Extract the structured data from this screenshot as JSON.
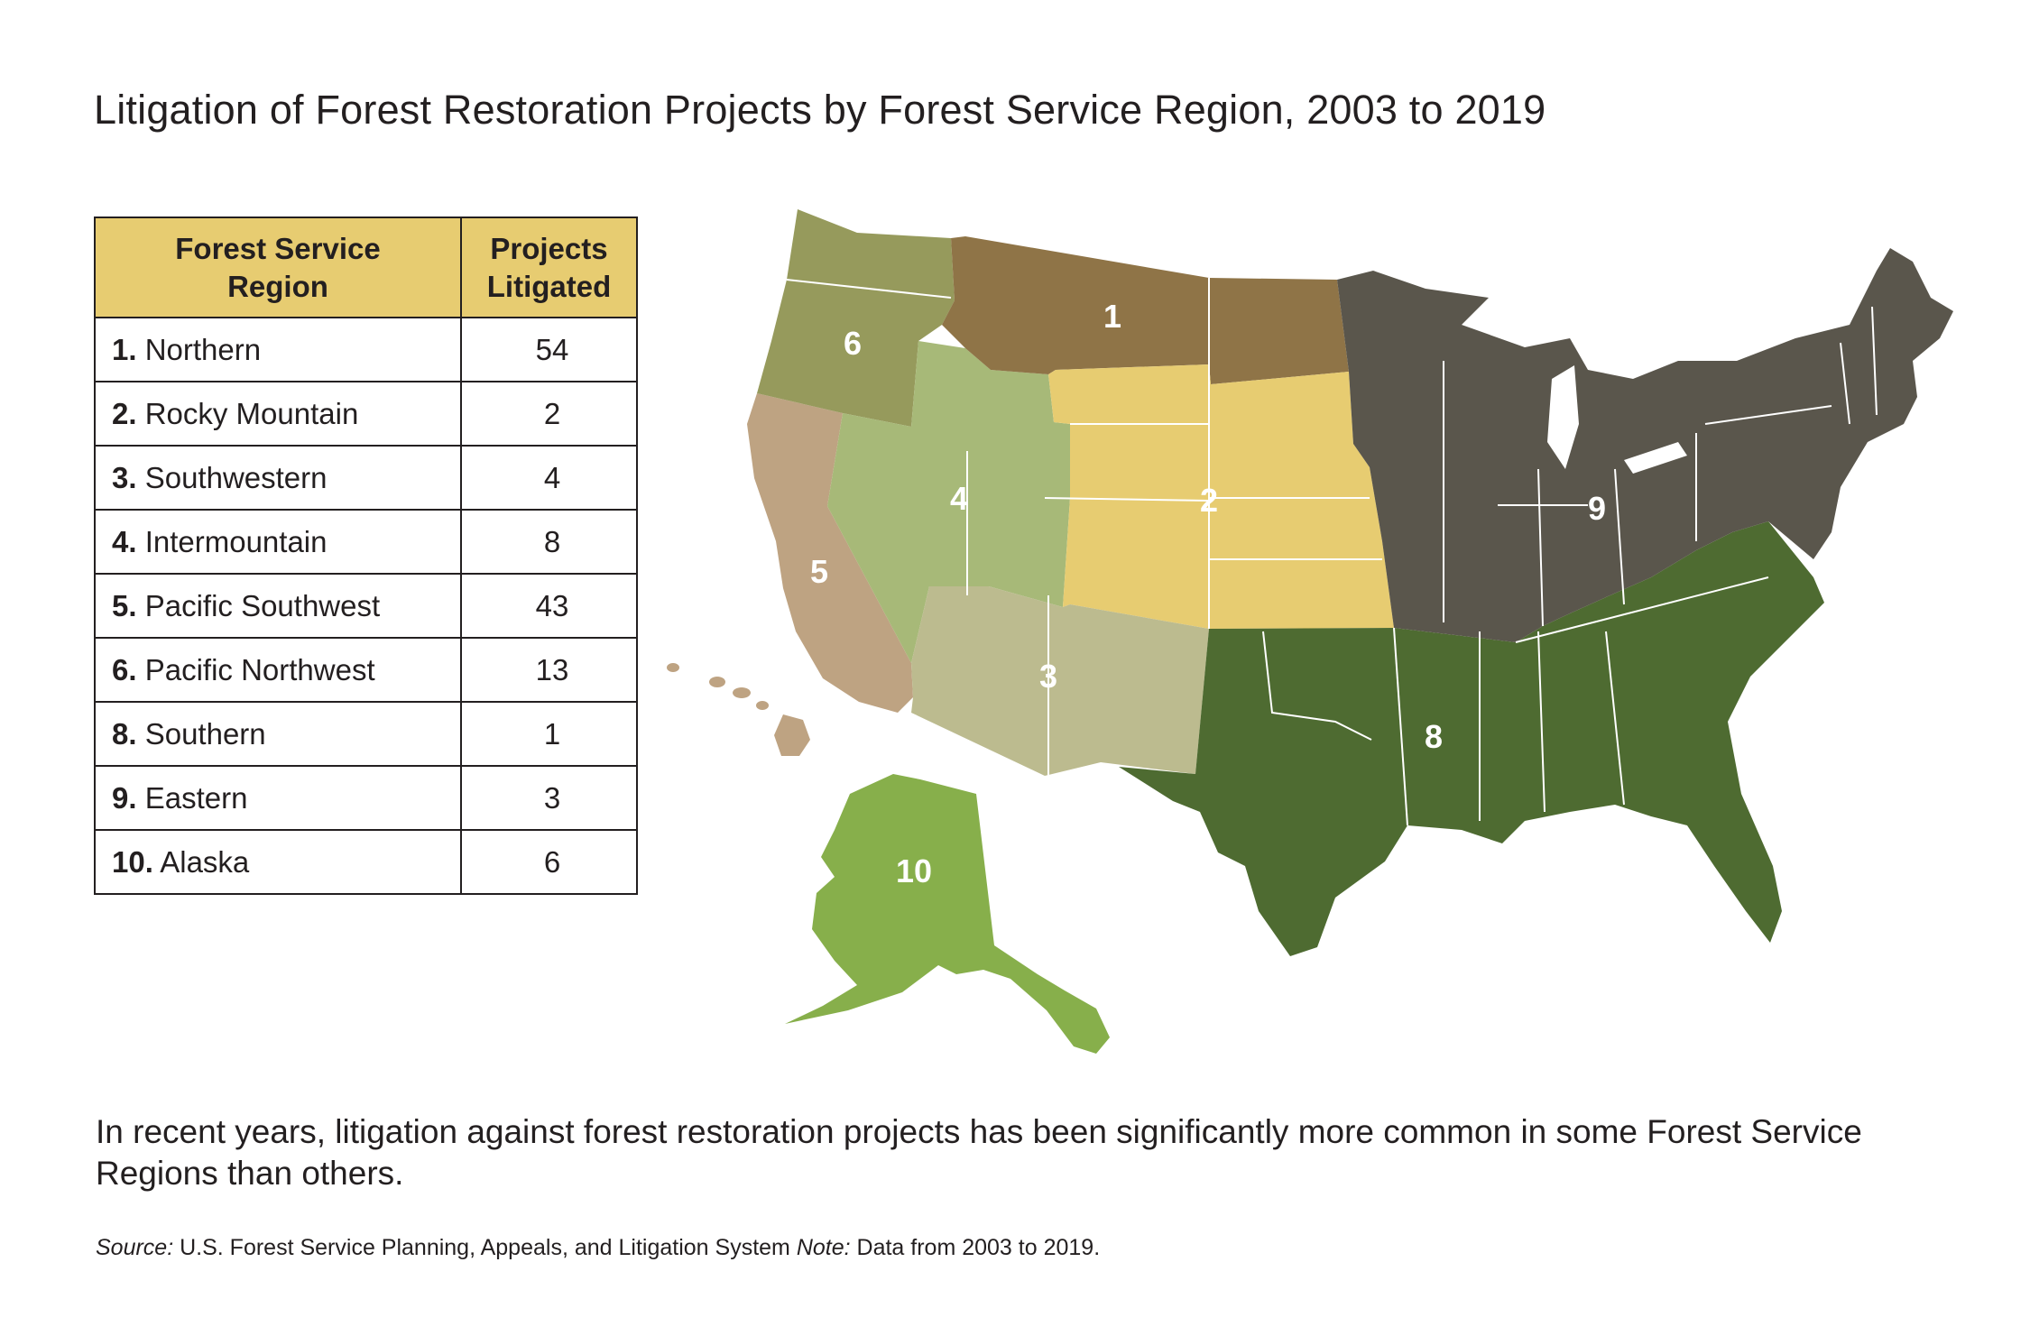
{
  "title": "Litigation of Forest Restoration Projects by Forest Service Region, 2003 to 2019",
  "table": {
    "headers": {
      "region_line1": "Forest Service",
      "region_line2": "Region",
      "count_line1": "Projects",
      "count_line2": "Litigated"
    },
    "rows": [
      {
        "num": "1.",
        "name": "Northern",
        "count": "54"
      },
      {
        "num": "2.",
        "name": "Rocky Mountain",
        "count": "2"
      },
      {
        "num": "3.",
        "name": "Southwestern",
        "count": "4"
      },
      {
        "num": "4.",
        "name": "Intermountain",
        "count": "8"
      },
      {
        "num": "5.",
        "name": "Pacific Southwest",
        "count": "43"
      },
      {
        "num": "6.",
        "name": "Pacific Northwest",
        "count": "13"
      },
      {
        "num": "8.",
        "name": "Southern",
        "count": "1"
      },
      {
        "num": "9.",
        "name": "Eastern",
        "count": "3"
      },
      {
        "num": "10.",
        "name": "Alaska",
        "count": "6"
      }
    ]
  },
  "map": {
    "labels": {
      "r1": "1",
      "r2": "2",
      "r3": "3",
      "r4": "4",
      "r5": "5",
      "r6": "6",
      "r8": "8",
      "r9": "9",
      "r10": "10"
    },
    "colors": {
      "header_fill": "#e7cc71",
      "region_1": "#8f7447",
      "region_2": "#e7cc71",
      "region_3": "#bcbb8f",
      "region_4": "#a7b978",
      "region_5": "#bea382",
      "region_6": "#969a5c",
      "region_8": "#4e6b31",
      "region_9": "#5a564c",
      "region_10": "#87af4b"
    }
  },
  "caption": "In recent years, litigation against forest restoration projects has been significantly more common in some Forest Service Regions than others.",
  "source": {
    "source_label": "Source:",
    "source_text": " U.S. Forest Service Planning, Appeals, and Litigation System  ",
    "note_label": "Note:",
    "note_text": " Data from 2003 to 2019."
  }
}
